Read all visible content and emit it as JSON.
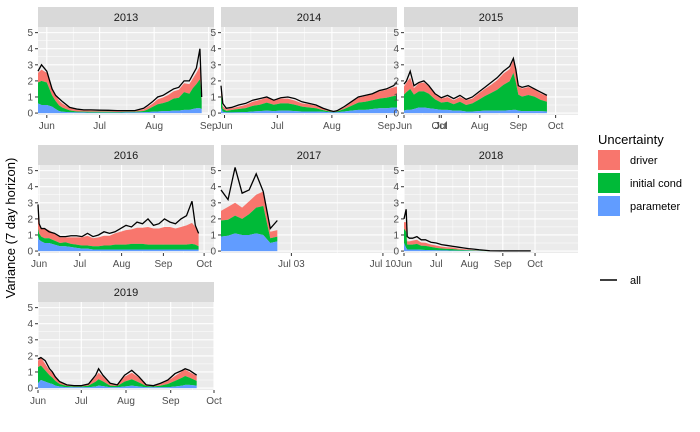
{
  "chart_data": {
    "type": "area",
    "ylabel": "Variance (7 day horizon)",
    "ylim": [
      0,
      5
    ],
    "yticks": [
      0,
      1,
      2,
      3,
      4,
      5
    ],
    "grid": true,
    "legend_position": "right",
    "legend": {
      "title": "Uncertainty",
      "entries": [
        {
          "key": "driver",
          "label": "driver",
          "color": "#F8766D"
        },
        {
          "key": "initial",
          "label": "initial cond",
          "color": "#00BA38"
        },
        {
          "key": "parameter",
          "label": "parameter",
          "color": "#619CFF"
        }
      ],
      "line_entry": {
        "label": "all",
        "color": "#000000"
      }
    },
    "colors": {
      "panel_bg": "#EBEBEB",
      "strip_bg": "#D9D9D9",
      "grid": "#FFFFFF",
      "line": "#000000"
    },
    "panels": [
      {
        "year": "2013",
        "x_domain": [
          0,
          100
        ],
        "x_ticks": [
          {
            "label": "Jun",
            "x": 5
          },
          {
            "label": "Jul",
            "x": 35
          },
          {
            "label": "Aug",
            "x": 66
          },
          {
            "label": "Sep",
            "x": 97
          }
        ],
        "x": [
          0,
          2,
          5,
          8,
          10,
          12,
          14,
          18,
          22,
          26,
          30,
          35,
          40,
          45,
          50,
          55,
          60,
          62,
          65,
          68,
          71,
          74,
          77,
          80,
          83,
          86,
          88,
          90,
          92,
          93
        ],
        "parameter": [
          0.6,
          0.5,
          0.5,
          0.4,
          0.25,
          0.12,
          0.08,
          0.05,
          0.04,
          0.04,
          0.03,
          0.03,
          0.03,
          0.03,
          0.04,
          0.04,
          0.05,
          0.06,
          0.08,
          0.1,
          0.12,
          0.12,
          0.15,
          0.15,
          0.2,
          0.2,
          0.25,
          0.3,
          0.3,
          0.25
        ],
        "initial": [
          1.3,
          1.5,
          1.4,
          0.7,
          0.5,
          0.35,
          0.25,
          0.12,
          0.06,
          0.05,
          0.05,
          0.05,
          0.05,
          0.04,
          0.04,
          0.04,
          0.08,
          0.15,
          0.3,
          0.45,
          0.5,
          0.6,
          0.75,
          0.8,
          1.1,
          1.0,
          1.3,
          1.5,
          1.8,
          0.5
        ],
        "driver": [
          0.6,
          0.7,
          0.6,
          0.4,
          0.35,
          0.3,
          0.25,
          0.15,
          0.1,
          0.08,
          0.07,
          0.06,
          0.06,
          0.05,
          0.05,
          0.06,
          0.1,
          0.15,
          0.2,
          0.3,
          0.35,
          0.4,
          0.45,
          0.5,
          0.55,
          0.6,
          0.6,
          0.7,
          0.8,
          0.2
        ],
        "all": [
          2.6,
          3.0,
          2.6,
          1.5,
          1.1,
          0.9,
          0.7,
          0.35,
          0.25,
          0.2,
          0.2,
          0.18,
          0.17,
          0.15,
          0.15,
          0.15,
          0.3,
          0.45,
          0.7,
          1.0,
          1.1,
          1.3,
          1.5,
          1.6,
          2.0,
          2.0,
          2.4,
          2.8,
          4.0,
          1.0
        ]
      },
      {
        "year": "2014",
        "x_domain": [
          0,
          100
        ],
        "x_ticks": [
          {
            "label": "Jun",
            "x": 2
          },
          {
            "label": "Jul",
            "x": 32
          },
          {
            "label": "Aug",
            "x": 63
          },
          {
            "label": "Sep",
            "x": 94
          },
          {
            "label": "Oct",
            "x": 124
          }
        ],
        "x": [
          0,
          1,
          3,
          6,
          10,
          14,
          18,
          22,
          26,
          30,
          34,
          38,
          42,
          46,
          50,
          54,
          58,
          62,
          64,
          66,
          70,
          74,
          78,
          82,
          86,
          90,
          94,
          98,
          100
        ],
        "parameter": [
          0.3,
          0.08,
          0.04,
          0.04,
          0.05,
          0.06,
          0.1,
          0.12,
          0.15,
          0.12,
          0.15,
          0.15,
          0.12,
          0.1,
          0.1,
          0.1,
          0.08,
          0.05,
          0.04,
          0.05,
          0.1,
          0.15,
          0.2,
          0.2,
          0.25,
          0.3,
          0.3,
          0.35,
          0.35
        ],
        "initial": [
          0.8,
          0.2,
          0.1,
          0.15,
          0.2,
          0.25,
          0.35,
          0.4,
          0.5,
          0.4,
          0.45,
          0.45,
          0.4,
          0.3,
          0.25,
          0.2,
          0.1,
          0.04,
          0.02,
          0.05,
          0.15,
          0.3,
          0.45,
          0.5,
          0.55,
          0.6,
          0.65,
          0.7,
          0.75
        ],
        "driver": [
          0.4,
          0.15,
          0.1,
          0.1,
          0.15,
          0.2,
          0.25,
          0.3,
          0.3,
          0.25,
          0.3,
          0.3,
          0.25,
          0.2,
          0.2,
          0.15,
          0.1,
          0.04,
          0.02,
          0.05,
          0.1,
          0.2,
          0.3,
          0.35,
          0.4,
          0.45,
          0.5,
          0.55,
          0.55
        ],
        "all": [
          1.7,
          0.6,
          0.3,
          0.35,
          0.5,
          0.6,
          0.8,
          0.9,
          1.0,
          0.8,
          0.95,
          1.0,
          0.9,
          0.7,
          0.6,
          0.5,
          0.3,
          0.15,
          0.1,
          0.15,
          0.4,
          0.7,
          1.0,
          1.1,
          1.2,
          1.4,
          1.5,
          1.7,
          1.9
        ]
      },
      {
        "year": "2015",
        "x_domain": [
          0,
          140
        ],
        "x_ticks": [
          {
            "label": "Jun",
            "x": 0
          },
          {
            "label": "Jul",
            "x": 30
          },
          {
            "label": "Aug",
            "x": 61
          },
          {
            "label": "Sep",
            "x": 92
          },
          {
            "label": "Oct",
            "x": 122
          }
        ],
        "x": [
          0,
          2,
          5,
          8,
          12,
          16,
          20,
          25,
          30,
          35,
          40,
          45,
          50,
          55,
          60,
          65,
          70,
          75,
          80,
          85,
          88,
          90,
          92,
          95,
          100,
          105,
          110,
          115
        ],
        "parameter": [
          0.15,
          0.2,
          0.2,
          0.25,
          0.35,
          0.35,
          0.3,
          0.25,
          0.2,
          0.2,
          0.15,
          0.15,
          0.1,
          0.1,
          0.12,
          0.15,
          0.15,
          0.15,
          0.15,
          0.18,
          0.2,
          0.2,
          0.15,
          0.12,
          0.12,
          0.12,
          0.12,
          0.1
        ],
        "initial": [
          1.0,
          1.1,
          1.3,
          0.9,
          1.0,
          1.0,
          0.9,
          0.6,
          0.45,
          0.5,
          0.4,
          0.55,
          0.4,
          0.5,
          0.7,
          0.9,
          1.1,
          1.3,
          1.6,
          1.8,
          2.3,
          1.7,
          1.0,
          0.9,
          1.0,
          0.9,
          0.7,
          0.6
        ],
        "driver": [
          0.5,
          0.6,
          0.7,
          0.4,
          0.5,
          0.55,
          0.45,
          0.3,
          0.25,
          0.3,
          0.25,
          0.3,
          0.3,
          0.3,
          0.4,
          0.45,
          0.5,
          0.6,
          0.7,
          0.75,
          0.8,
          0.7,
          0.5,
          0.5,
          0.5,
          0.45,
          0.4,
          0.35
        ],
        "all": [
          1.8,
          2.0,
          2.6,
          1.7,
          1.9,
          2.0,
          1.7,
          1.2,
          0.95,
          1.1,
          0.9,
          1.1,
          0.85,
          1.0,
          1.3,
          1.6,
          1.9,
          2.2,
          2.6,
          2.9,
          3.4,
          2.7,
          1.7,
          1.6,
          1.7,
          1.5,
          1.3,
          1.1
        ]
      },
      {
        "year": "2016",
        "x_domain": [
          0,
          160
        ],
        "x_ticks": [
          {
            "label": "Jun",
            "x": 1
          },
          {
            "label": "Jul",
            "x": 38
          },
          {
            "label": "Aug",
            "x": 76
          },
          {
            "label": "Sep",
            "x": 114
          },
          {
            "label": "Oct",
            "x": 151
          }
        ],
        "x": [
          0,
          1,
          3,
          6,
          10,
          15,
          20,
          25,
          30,
          35,
          40,
          45,
          50,
          55,
          60,
          65,
          70,
          75,
          80,
          85,
          90,
          95,
          100,
          105,
          110,
          115,
          120,
          125,
          130,
          135,
          140,
          143,
          146
        ],
        "parameter": [
          0.9,
          0.7,
          0.6,
          0.5,
          0.5,
          0.4,
          0.3,
          0.3,
          0.25,
          0.2,
          0.15,
          0.15,
          0.1,
          0.1,
          0.1,
          0.1,
          0.1,
          0.1,
          0.1,
          0.1,
          0.1,
          0.1,
          0.1,
          0.1,
          0.1,
          0.1,
          0.1,
          0.1,
          0.1,
          0.1,
          0.1,
          0.1,
          0.1
        ],
        "initial": [
          0.5,
          0.4,
          0.3,
          0.3,
          0.3,
          0.25,
          0.2,
          0.25,
          0.2,
          0.2,
          0.2,
          0.2,
          0.2,
          0.2,
          0.25,
          0.25,
          0.3,
          0.3,
          0.3,
          0.35,
          0.35,
          0.35,
          0.3,
          0.3,
          0.3,
          0.3,
          0.3,
          0.3,
          0.3,
          0.3,
          0.35,
          0.3,
          0.2
        ],
        "driver": [
          1.4,
          0.5,
          0.5,
          0.6,
          0.5,
          0.4,
          0.35,
          0.3,
          0.4,
          0.45,
          0.5,
          0.6,
          0.5,
          0.55,
          0.6,
          0.6,
          0.7,
          0.8,
          0.9,
          0.9,
          1.0,
          1.0,
          1.1,
          1.0,
          1.0,
          1.1,
          1.1,
          1.0,
          1.1,
          1.2,
          1.3,
          1.1,
          0.8
        ],
        "all": [
          2.9,
          1.7,
          1.4,
          1.4,
          1.2,
          1.1,
          0.9,
          0.9,
          0.95,
          0.95,
          0.9,
          1.1,
          0.9,
          1.0,
          1.2,
          1.1,
          1.2,
          1.4,
          1.6,
          1.5,
          1.8,
          1.7,
          2.0,
          1.6,
          1.7,
          2.0,
          1.8,
          1.7,
          2.0,
          2.2,
          3.1,
          1.6,
          1.1
        ]
      },
      {
        "year": "2017",
        "x_domain": [
          0,
          25
        ],
        "x_ticks": [
          {
            "label": "Jul 03",
            "x": 10
          },
          {
            "label": "Jul 10",
            "x": 23
          }
        ],
        "x": [
          0,
          1,
          2,
          3,
          4,
          5,
          6,
          7,
          8
        ],
        "parameter": [
          0.9,
          0.95,
          1.1,
          1.0,
          1.0,
          1.1,
          1.0,
          0.5,
          0.6
        ],
        "initial": [
          1.0,
          1.0,
          1.1,
          1.0,
          1.3,
          1.6,
          1.8,
          0.3,
          0.3
        ],
        "driver": [
          0.6,
          0.8,
          0.8,
          0.7,
          0.8,
          0.8,
          0.9,
          0.4,
          0.4
        ],
        "all": [
          3.8,
          3.2,
          5.2,
          3.6,
          3.8,
          4.8,
          3.7,
          1.4,
          1.9
        ]
      },
      {
        "year": "2018",
        "x_domain": [
          0,
          162
        ],
        "x_ticks": [
          {
            "label": "Jun",
            "x": 0
          },
          {
            "label": "Jul",
            "x": 30
          },
          {
            "label": "Aug",
            "x": 61
          },
          {
            "label": "Sep",
            "x": 92
          },
          {
            "label": "Oct",
            "x": 122
          }
        ],
        "x": [
          0,
          2,
          3,
          5,
          8,
          12,
          16,
          20,
          25,
          30,
          35,
          40,
          45,
          50,
          55,
          60,
          65,
          70,
          75,
          80,
          90,
          100,
          110,
          118
        ],
        "parameter": [
          0.5,
          0.2,
          0.1,
          0.1,
          0.1,
          0.1,
          0.08,
          0.07,
          0.06,
          0.05,
          0.04,
          0.04,
          0.03,
          0.02,
          0.02,
          0.02,
          0.01,
          0.01,
          0.0,
          0.0,
          0.0,
          0.0,
          0.0,
          0.0
        ],
        "initial": [
          0.9,
          1.0,
          0.3,
          0.3,
          0.3,
          0.35,
          0.25,
          0.25,
          0.2,
          0.15,
          0.12,
          0.1,
          0.1,
          0.07,
          0.05,
          0.04,
          0.03,
          0.02,
          0.01,
          0.0,
          0.0,
          0.0,
          0.0,
          0.0
        ],
        "driver": [
          0.4,
          0.6,
          0.2,
          0.2,
          0.25,
          0.25,
          0.2,
          0.2,
          0.15,
          0.15,
          0.12,
          0.1,
          0.1,
          0.07,
          0.05,
          0.04,
          0.03,
          0.02,
          0.01,
          0.0,
          0.0,
          0.0,
          0.0,
          0.0
        ],
        "all": [
          2.0,
          2.6,
          0.9,
          0.8,
          0.8,
          0.9,
          0.7,
          0.7,
          0.55,
          0.5,
          0.4,
          0.35,
          0.3,
          0.25,
          0.2,
          0.15,
          0.12,
          0.08,
          0.05,
          0.02,
          0.01,
          0.01,
          0.01,
          0.01
        ]
      },
      {
        "year": "2019",
        "x_domain": [
          0,
          122
        ],
        "x_ticks": [
          {
            "label": "Jun",
            "x": 0
          },
          {
            "label": "Jul",
            "x": 30
          },
          {
            "label": "Aug",
            "x": 61
          },
          {
            "label": "Sep",
            "x": 92
          },
          {
            "label": "Oct",
            "x": 122
          }
        ],
        "x": [
          0,
          2,
          5,
          8,
          10,
          12,
          15,
          20,
          25,
          30,
          35,
          40,
          42,
          45,
          50,
          55,
          60,
          65,
          70,
          75,
          80,
          85,
          90,
          95,
          100,
          102,
          105,
          110
        ],
        "parameter": [
          0.3,
          0.5,
          0.4,
          0.3,
          0.25,
          0.15,
          0.1,
          0.05,
          0.05,
          0.05,
          0.05,
          0.1,
          0.15,
          0.12,
          0.05,
          0.05,
          0.1,
          0.15,
          0.1,
          0.05,
          0.05,
          0.05,
          0.05,
          0.1,
          0.15,
          0.2,
          0.2,
          0.15
        ],
        "initial": [
          1.0,
          0.9,
          0.7,
          0.5,
          0.4,
          0.3,
          0.15,
          0.08,
          0.05,
          0.05,
          0.1,
          0.3,
          0.4,
          0.3,
          0.1,
          0.08,
          0.3,
          0.4,
          0.25,
          0.08,
          0.05,
          0.1,
          0.2,
          0.35,
          0.5,
          0.55,
          0.45,
          0.3
        ],
        "driver": [
          0.4,
          0.5,
          0.4,
          0.3,
          0.3,
          0.2,
          0.15,
          0.05,
          0.05,
          0.05,
          0.1,
          0.3,
          0.4,
          0.3,
          0.1,
          0.07,
          0.3,
          0.4,
          0.3,
          0.07,
          0.05,
          0.1,
          0.2,
          0.3,
          0.4,
          0.4,
          0.35,
          0.3
        ],
        "all": [
          1.8,
          1.9,
          1.7,
          1.2,
          1.0,
          0.7,
          0.4,
          0.2,
          0.15,
          0.15,
          0.25,
          0.8,
          1.2,
          0.8,
          0.3,
          0.2,
          0.8,
          1.1,
          0.7,
          0.2,
          0.15,
          0.3,
          0.5,
          0.9,
          1.1,
          1.2,
          1.1,
          0.8
        ]
      }
    ]
  }
}
